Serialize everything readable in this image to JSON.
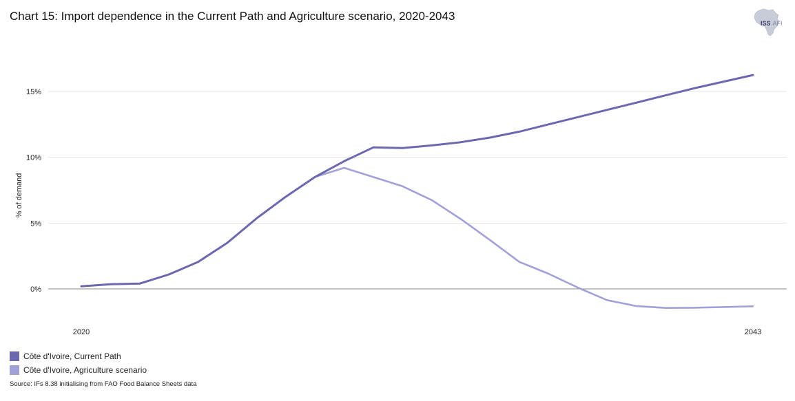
{
  "title": "Chart 15: Import dependence in the Current Path and Agriculture scenario, 2020-2043",
  "logo": {
    "text": "ISS",
    "sub": "AFI",
    "icon": "africa-map-icon"
  },
  "source": "Source: IFs 8.38 initialising from FAO Food Balance Sheets data",
  "chart_data": {
    "type": "line",
    "xlabel": "",
    "ylabel": "% of demand",
    "x": [
      2020,
      2021,
      2022,
      2023,
      2024,
      2025,
      2026,
      2027,
      2028,
      2029,
      2030,
      2031,
      2032,
      2033,
      2034,
      2035,
      2036,
      2037,
      2038,
      2039,
      2040,
      2041,
      2042,
      2043
    ],
    "x_tick_labels": [
      "2020",
      "2043"
    ],
    "y_ticks": [
      0,
      5,
      10,
      15
    ],
    "y_tick_labels": [
      "0%",
      "5%",
      "10%",
      "15%"
    ],
    "ylim": [
      -2.7,
      17.5
    ],
    "grid": true,
    "legend_position": "bottom-left",
    "series": [
      {
        "name": "Côte d'Ivoire, Current Path",
        "color": "#6b68b0",
        "values": [
          0.2,
          0.35,
          0.4,
          1.1,
          2.05,
          3.5,
          5.35,
          7.0,
          8.5,
          9.7,
          10.75,
          10.7,
          10.9,
          11.15,
          11.5,
          11.95,
          12.5,
          13.05,
          13.6,
          14.15,
          14.7,
          15.25,
          15.75,
          16.25
        ]
      },
      {
        "name": "Côte d'Ivoire, Agriculture scenario",
        "color": "#a2a0d8",
        "values": [
          0.2,
          0.35,
          0.4,
          1.1,
          2.05,
          3.5,
          5.35,
          7.0,
          8.5,
          9.2,
          8.5,
          7.8,
          6.75,
          5.3,
          3.7,
          2.05,
          1.15,
          0.1,
          -0.85,
          -1.3,
          -1.45,
          -1.43,
          -1.38,
          -1.32
        ]
      }
    ]
  }
}
